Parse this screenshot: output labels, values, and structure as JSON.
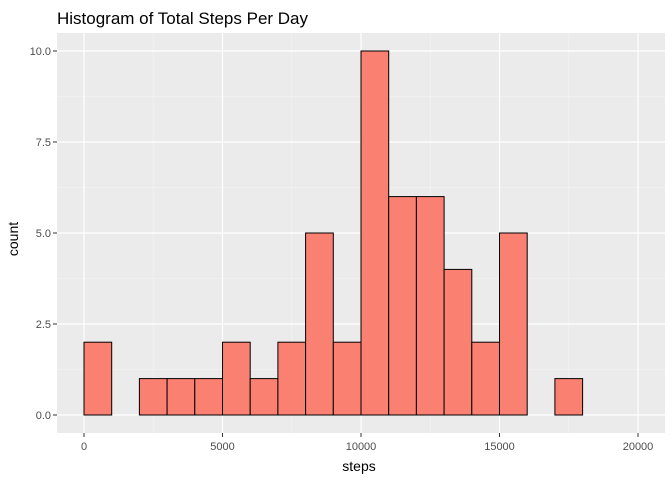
{
  "chart_data": {
    "type": "histogram",
    "title": "Histogram of Total Steps Per Day",
    "xlabel": "steps",
    "ylabel": "count",
    "bin_width": 1000,
    "bins": [
      {
        "start": 0,
        "end": 1000,
        "count": 2
      },
      {
        "start": 1000,
        "end": 2000,
        "count": 0
      },
      {
        "start": 2000,
        "end": 3000,
        "count": 1
      },
      {
        "start": 3000,
        "end": 4000,
        "count": 1
      },
      {
        "start": 4000,
        "end": 5000,
        "count": 1
      },
      {
        "start": 5000,
        "end": 6000,
        "count": 2
      },
      {
        "start": 6000,
        "end": 7000,
        "count": 1
      },
      {
        "start": 7000,
        "end": 8000,
        "count": 2
      },
      {
        "start": 8000,
        "end": 9000,
        "count": 5
      },
      {
        "start": 9000,
        "end": 10000,
        "count": 2
      },
      {
        "start": 10000,
        "end": 11000,
        "count": 10
      },
      {
        "start": 11000,
        "end": 12000,
        "count": 6
      },
      {
        "start": 12000,
        "end": 13000,
        "count": 6
      },
      {
        "start": 13000,
        "end": 14000,
        "count": 4
      },
      {
        "start": 14000,
        "end": 15000,
        "count": 2
      },
      {
        "start": 15000,
        "end": 16000,
        "count": 5
      },
      {
        "start": 16000,
        "end": 17000,
        "count": 0
      },
      {
        "start": 17000,
        "end": 18000,
        "count": 1
      },
      {
        "start": 18000,
        "end": 19000,
        "count": 0
      },
      {
        "start": 19000,
        "end": 20000,
        "count": 0
      }
    ],
    "xlim": [
      0,
      20000
    ],
    "ylim": [
      0,
      10
    ],
    "x_ticks": [
      "0",
      "5000",
      "10000",
      "15000",
      "20000"
    ],
    "x_tick_values": [
      0,
      5000,
      10000,
      15000,
      20000
    ],
    "y_ticks": [
      "0.0",
      "2.5",
      "5.0",
      "7.5",
      "10.0"
    ],
    "y_tick_values": [
      0,
      2.5,
      5,
      7.5,
      10
    ],
    "grid": true,
    "colors": {
      "bar_fill": "#FA8072",
      "bar_stroke": "#000000",
      "panel_background": "#EBEBEB",
      "grid_major": "#FFFFFF",
      "grid_minor": "#F5F5F5"
    }
  }
}
